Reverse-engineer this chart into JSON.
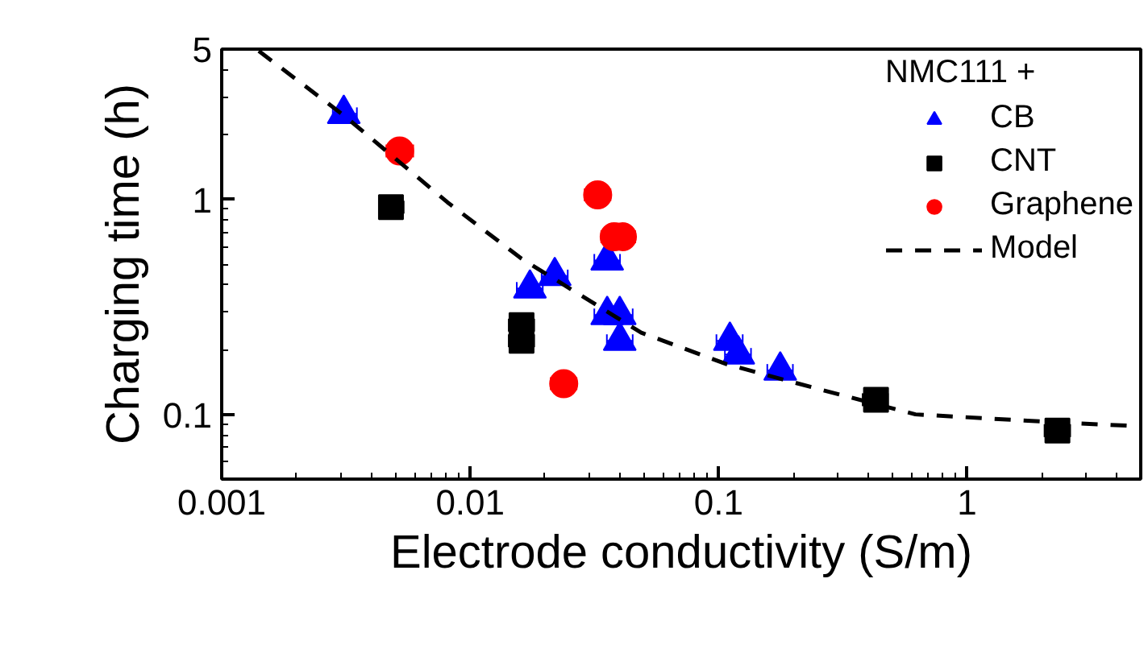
{
  "chart_data": {
    "type": "scatter",
    "xlabel": "Electrode conductivity (S/m)",
    "ylabel": "Charging time (h)",
    "legend_title": "NMC111 +",
    "legend": "top right",
    "log": "xy",
    "grid": false,
    "xlim": [
      0.001,
      5
    ],
    "ylim": [
      0.05,
      5
    ],
    "xticks": [
      0.001,
      0.01,
      0.1,
      1
    ],
    "yticks": [
      0.1,
      1,
      5
    ],
    "series": [
      {
        "name": "CB",
        "marker": "triangle",
        "color": "#0000ff",
        "x": [
          0.0031,
          0.0174,
          0.0219,
          0.0356,
          0.0356,
          0.04,
          0.04,
          0.111,
          0.12,
          0.177
        ],
        "values": [
          2.5,
          0.385,
          0.44,
          0.52,
          0.29,
          0.29,
          0.22,
          0.22,
          0.19,
          0.16
        ],
        "xerrors": [
          [
            0.0028,
            0.0035
          ],
          [
            0.0154,
            0.0196
          ],
          [
            0.0194,
            0.0247
          ],
          [
            0.0316,
            0.0401
          ],
          [
            0.0316,
            0.0401
          ],
          [
            0.0355,
            0.0451
          ],
          [
            0.0355,
            0.0451
          ],
          [
            0.098,
            0.125
          ],
          [
            0.106,
            0.135
          ],
          [
            0.157,
            0.199
          ]
        ]
      },
      {
        "name": "CNT",
        "marker": "square",
        "color": "#000000",
        "x": [
          0.0048,
          0.0161,
          0.0161,
          0.43,
          2.31
        ],
        "values": [
          0.92,
          0.26,
          0.22,
          0.117,
          0.084
        ],
        "xerrors": [
          [
            0.0043,
            0.0054
          ],
          [
            0.0143,
            0.0181
          ],
          [
            0.0143,
            0.0181
          ],
          [
            0.38,
            0.48
          ],
          [
            2.05,
            2.6
          ]
        ]
      },
      {
        "name": "Graphene",
        "marker": "circle",
        "color": "#ff0000",
        "x": [
          0.0052,
          0.0238,
          0.0326,
          0.038,
          0.041
        ],
        "values": [
          1.68,
          0.139,
          1.05,
          0.67,
          0.67
        ],
        "xerrors": [
          [
            0.0046,
            0.0059
          ],
          [
            0.0211,
            0.0268
          ],
          [
            0.0289,
            0.0367
          ],
          [
            0.0337,
            0.038
          ],
          [
            0.041,
            0.0462
          ]
        ]
      },
      {
        "name": "Model",
        "type": "line",
        "line_style": "dashed",
        "color": "#000000",
        "x": [
          0.00141,
          0.0031,
          0.0081,
          0.0161,
          0.0488,
          0.108,
          0.26,
          0.62,
          2.24,
          5
        ],
        "values": [
          4.9,
          2.46,
          0.97,
          0.53,
          0.24,
          0.171,
          0.13,
          0.1,
          0.092,
          0.088
        ]
      }
    ]
  }
}
